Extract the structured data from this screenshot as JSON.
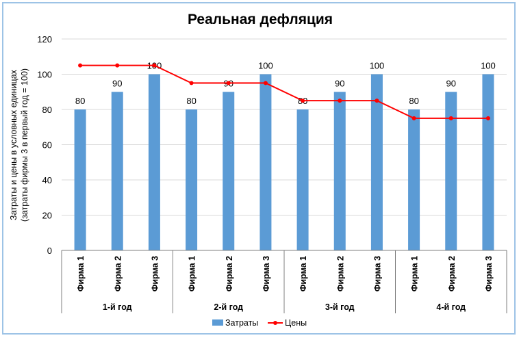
{
  "chart_data": {
    "type": "bar",
    "title": "Реальная дефляция",
    "ylabel_line1": "Затраты и цены в условных единицах",
    "ylabel_line2": "(затраты фирмы 3 в первый год = 100)",
    "ylim": [
      0,
      120
    ],
    "yticks": [
      0,
      20,
      40,
      60,
      80,
      100,
      120
    ],
    "grid": true,
    "legend_position": "bottom-right",
    "groups": [
      "1-й год",
      "2-й год",
      "3-й год",
      "4-й год"
    ],
    "categories": [
      "Фирма 1",
      "Фирма 2",
      "Фирма 3",
      "Фирма 1",
      "Фирма 2",
      "Фирма 3",
      "Фирма 1",
      "Фирма 2",
      "Фирма 3",
      "Фирма 1",
      "Фирма 2",
      "Фирма 3"
    ],
    "series": [
      {
        "name": "Затраты",
        "kind": "bar",
        "color": "#5b9bd5",
        "values": [
          80,
          90,
          100,
          80,
          90,
          100,
          80,
          90,
          100,
          80,
          90,
          100
        ],
        "data_labels": true
      },
      {
        "name": "Цены",
        "kind": "line",
        "color": "#ff0000",
        "values": [
          105,
          105,
          105,
          95,
          95,
          95,
          85,
          85,
          85,
          75,
          75,
          75
        ]
      }
    ]
  }
}
